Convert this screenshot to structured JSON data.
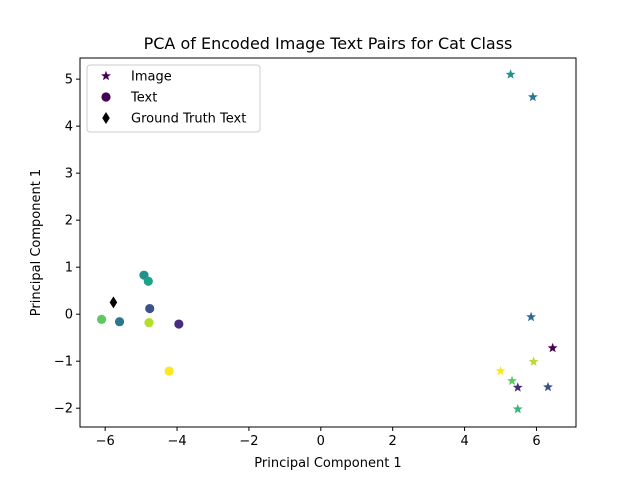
{
  "chart_data": {
    "type": "scatter",
    "title": "PCA of Encoded Image Text Pairs for Cat Class",
    "xlabel": "Principal Component 1",
    "ylabel": "Principal Component 1",
    "xlim": [
      -6.7,
      7.1
    ],
    "ylim": [
      -2.4,
      5.45
    ],
    "xticks": [
      -6,
      -4,
      -2,
      0,
      2,
      4,
      6
    ],
    "yticks": [
      -2,
      -1,
      0,
      1,
      2,
      3,
      4,
      5
    ],
    "grid": false,
    "legend_position": "top-left",
    "series": [
      {
        "name": "Image",
        "marker": "star",
        "points": [
          {
            "x": 5.28,
            "y": 5.1,
            "color": "#21918c"
          },
          {
            "x": 5.9,
            "y": 4.62,
            "color": "#2a788e"
          },
          {
            "x": 5.85,
            "y": -0.06,
            "color": "#31688e"
          },
          {
            "x": 6.45,
            "y": -0.72,
            "color": "#440154"
          },
          {
            "x": 5.92,
            "y": -1.01,
            "color": "#b5de2b"
          },
          {
            "x": 5.0,
            "y": -1.21,
            "color": "#fde725"
          },
          {
            "x": 5.32,
            "y": -1.42,
            "color": "#5ec962"
          },
          {
            "x": 5.48,
            "y": -1.56,
            "color": "#472d7b"
          },
          {
            "x": 6.32,
            "y": -1.55,
            "color": "#3b528b"
          },
          {
            "x": 5.48,
            "y": -2.02,
            "color": "#35b779"
          }
        ]
      },
      {
        "name": "Text",
        "marker": "circle",
        "points": [
          {
            "x": -4.92,
            "y": 0.83,
            "color": "#21918c"
          },
          {
            "x": -4.8,
            "y": 0.7,
            "color": "#1fa187"
          },
          {
            "x": -4.76,
            "y": 0.12,
            "color": "#3b528b"
          },
          {
            "x": -3.95,
            "y": -0.21,
            "color": "#472d7b"
          },
          {
            "x": -6.1,
            "y": -0.11,
            "color": "#5ec962"
          },
          {
            "x": -5.6,
            "y": -0.16,
            "color": "#2a788e"
          },
          {
            "x": -4.78,
            "y": -0.18,
            "color": "#b5de2b"
          },
          {
            "x": -4.22,
            "y": -1.21,
            "color": "#fde725"
          }
        ]
      },
      {
        "name": "Ground Truth Text",
        "marker": "diamond",
        "points": [
          {
            "x": -5.77,
            "y": 0.25,
            "color": "#000000"
          }
        ]
      }
    ],
    "legend": [
      {
        "label": "Image",
        "marker": "star",
        "color": "#440154"
      },
      {
        "label": "Text",
        "marker": "circle",
        "color": "#440154"
      },
      {
        "label": "Ground Truth Text",
        "marker": "diamond",
        "color": "#000000"
      }
    ]
  }
}
